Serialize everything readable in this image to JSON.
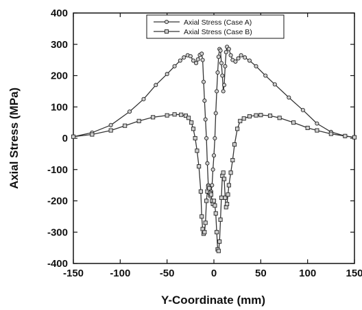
{
  "chart_data": {
    "type": "line",
    "title": "",
    "xlabel": "Y-Coordinate (mm)",
    "ylabel": "Axial Stress (MPa)",
    "xlim": [
      -150,
      150
    ],
    "ylim": [
      -400,
      400
    ],
    "xticks": [
      -150,
      -100,
      -50,
      0,
      50,
      100,
      150
    ],
    "yticks": [
      -400,
      -300,
      -200,
      -100,
      0,
      100,
      200,
      300,
      400
    ],
    "grid": false,
    "legend_position": "top-center",
    "series": [
      {
        "name": "Axial Stress (Case A)",
        "marker": "circle",
        "color": "#333333",
        "points": [
          [
            -150,
            5
          ],
          [
            -130,
            18
          ],
          [
            -110,
            42
          ],
          [
            -90,
            85
          ],
          [
            -75,
            125
          ],
          [
            -62,
            170
          ],
          [
            -50,
            205
          ],
          [
            -42,
            230
          ],
          [
            -36,
            248
          ],
          [
            -32,
            258
          ],
          [
            -28,
            265
          ],
          [
            -25,
            262
          ],
          [
            -22,
            248
          ],
          [
            -19,
            240
          ],
          [
            -17,
            252
          ],
          [
            -15,
            266
          ],
          [
            -13,
            270
          ],
          [
            -12,
            250
          ],
          [
            -11,
            180
          ],
          [
            -10,
            120
          ],
          [
            -9,
            60
          ],
          [
            -8,
            0
          ],
          [
            -7,
            -80
          ],
          [
            -6,
            -150
          ],
          [
            -5,
            -175
          ],
          [
            -4,
            -185
          ],
          [
            -3,
            -170
          ],
          [
            -2,
            -150
          ],
          [
            -1,
            -100
          ],
          [
            0,
            -55
          ],
          [
            1,
            0
          ],
          [
            2,
            80
          ],
          [
            3,
            150
          ],
          [
            4,
            210
          ],
          [
            5,
            260
          ],
          [
            6,
            285
          ],
          [
            7,
            280
          ],
          [
            8,
            240
          ],
          [
            9,
            200
          ],
          [
            10,
            150
          ],
          [
            11,
            170
          ],
          [
            12,
            230
          ],
          [
            13,
            275
          ],
          [
            14,
            292
          ],
          [
            16,
            285
          ],
          [
            18,
            265
          ],
          [
            20,
            250
          ],
          [
            23,
            245
          ],
          [
            26,
            255
          ],
          [
            29,
            265
          ],
          [
            33,
            258
          ],
          [
            38,
            248
          ],
          [
            45,
            230
          ],
          [
            55,
            200
          ],
          [
            65,
            172
          ],
          [
            80,
            130
          ],
          [
            95,
            90
          ],
          [
            110,
            47
          ],
          [
            125,
            20
          ],
          [
            140,
            7
          ],
          [
            150,
            3
          ]
        ]
      },
      {
        "name": "Axial Stress (Case B)",
        "marker": "square",
        "color": "#333333",
        "points": [
          [
            -150,
            5
          ],
          [
            -130,
            12
          ],
          [
            -110,
            25
          ],
          [
            -95,
            40
          ],
          [
            -80,
            55
          ],
          [
            -65,
            67
          ],
          [
            -50,
            73
          ],
          [
            -42,
            76
          ],
          [
            -35,
            75
          ],
          [
            -30,
            72
          ],
          [
            -27,
            65
          ],
          [
            -24,
            50
          ],
          [
            -22,
            30
          ],
          [
            -20,
            0
          ],
          [
            -18,
            -40
          ],
          [
            -16,
            -90
          ],
          [
            -14,
            -170
          ],
          [
            -13,
            -250
          ],
          [
            -12,
            -290
          ],
          [
            -11,
            -305
          ],
          [
            -10,
            -300
          ],
          [
            -9,
            -270
          ],
          [
            -8,
            -200
          ],
          [
            -7,
            -170
          ],
          [
            -6,
            -155
          ],
          [
            -5,
            -160
          ],
          [
            -4,
            -175
          ],
          [
            -3,
            -180
          ],
          [
            -2,
            -200
          ],
          [
            -1,
            -210
          ],
          [
            0,
            -200
          ],
          [
            1,
            -215
          ],
          [
            2,
            -240
          ],
          [
            3,
            -300
          ],
          [
            4,
            -355
          ],
          [
            5,
            -360
          ],
          [
            6,
            -330
          ],
          [
            7,
            -260
          ],
          [
            8,
            -190
          ],
          [
            9,
            -120
          ],
          [
            10,
            -110
          ],
          [
            11,
            -130
          ],
          [
            12,
            -190
          ],
          [
            13,
            -220
          ],
          [
            14,
            -210
          ],
          [
            15,
            -180
          ],
          [
            16,
            -150
          ],
          [
            18,
            -110
          ],
          [
            20,
            -70
          ],
          [
            22,
            -20
          ],
          [
            25,
            30
          ],
          [
            28,
            55
          ],
          [
            32,
            63
          ],
          [
            38,
            70
          ],
          [
            45,
            73
          ],
          [
            50,
            74
          ],
          [
            60,
            72
          ],
          [
            70,
            65
          ],
          [
            85,
            50
          ],
          [
            100,
            33
          ],
          [
            110,
            25
          ],
          [
            125,
            14
          ],
          [
            140,
            7
          ],
          [
            150,
            3
          ]
        ]
      }
    ]
  }
}
